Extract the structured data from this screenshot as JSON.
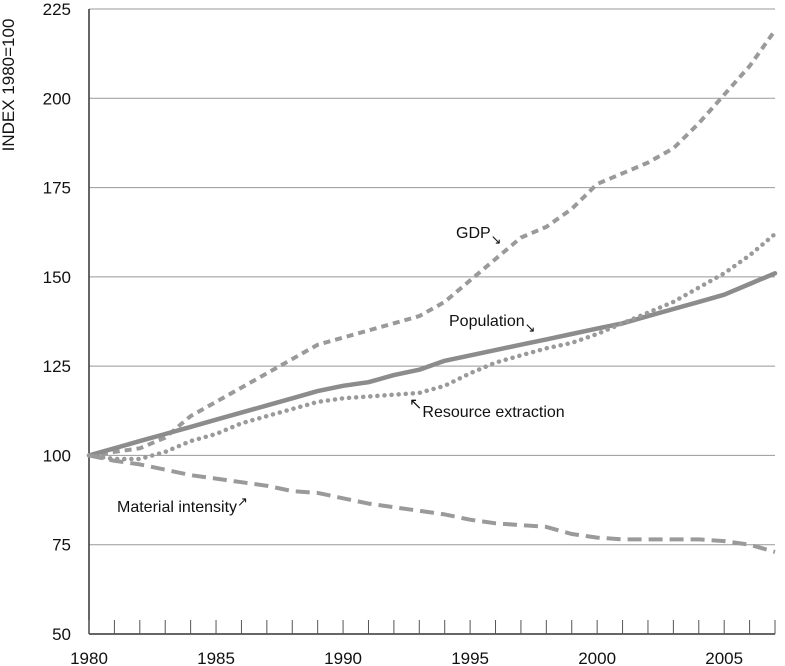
{
  "chart_data": {
    "type": "line",
    "title": "",
    "xlabel": "",
    "ylabel": "INDEX 1980=100",
    "xlim": [
      1980,
      2007
    ],
    "ylim": [
      50,
      225
    ],
    "x_ticks": [
      1980,
      1985,
      1990,
      1995,
      2000,
      2005
    ],
    "y_ticks": [
      50,
      75,
      100,
      125,
      150,
      175,
      200,
      225
    ],
    "grid": true,
    "x": [
      1980,
      1981,
      1982,
      1983,
      1984,
      1985,
      1986,
      1987,
      1988,
      1989,
      1990,
      1991,
      1992,
      1993,
      1994,
      1995,
      1996,
      1997,
      1998,
      1999,
      2000,
      2001,
      2002,
      2003,
      2004,
      2005,
      2006,
      2007
    ],
    "series": [
      {
        "name": "GDP",
        "color": "#9a9a9a",
        "dash": "dashed",
        "values": [
          100,
          101,
          102,
          105,
          111,
          115,
          119,
          123,
          127,
          131,
          133,
          135,
          137,
          139,
          143,
          149,
          155,
          161,
          164,
          169,
          176,
          179,
          182,
          186,
          193,
          201,
          209,
          219
        ]
      },
      {
        "name": "Population",
        "color": "#8c8c8c",
        "dash": "solid",
        "values": [
          100,
          102,
          104,
          106,
          108,
          110,
          112,
          114,
          116,
          118,
          119.5,
          120.5,
          122.5,
          124,
          126.5,
          128,
          129.5,
          131,
          132.5,
          134,
          135.5,
          137,
          139,
          141,
          143,
          145,
          148,
          151
        ]
      },
      {
        "name": "Resource extraction",
        "color": "#9a9a9a",
        "dash": "dotted",
        "values": [
          100,
          99,
          99,
          101,
          104,
          106,
          109,
          111,
          113,
          115,
          116,
          116.5,
          117,
          117.5,
          119.5,
          123,
          126,
          128,
          130,
          131.5,
          134,
          137,
          140,
          143,
          147,
          151,
          156,
          162
        ]
      },
      {
        "name": "Material intensity",
        "color": "#9a9a9a",
        "dash": "long-dash",
        "values": [
          100,
          98.5,
          97.5,
          96,
          94.5,
          93.5,
          92.5,
          91.5,
          90,
          89.5,
          88,
          86.5,
          85.5,
          84.5,
          83.5,
          82,
          81,
          80.5,
          80,
          78,
          77,
          76.5,
          76.5,
          76.5,
          76.5,
          76,
          75,
          73
        ]
      }
    ],
    "annotations": [
      {
        "text": "GDP",
        "arrow": "↘",
        "series": "GDP"
      },
      {
        "text": "Population",
        "arrow": "↘",
        "series": "Population"
      },
      {
        "text": "Resource extraction",
        "arrow": "↖",
        "series": "Resource extraction"
      },
      {
        "text": "Material intensity",
        "arrow": "↗",
        "series": "Material intensity"
      }
    ]
  }
}
